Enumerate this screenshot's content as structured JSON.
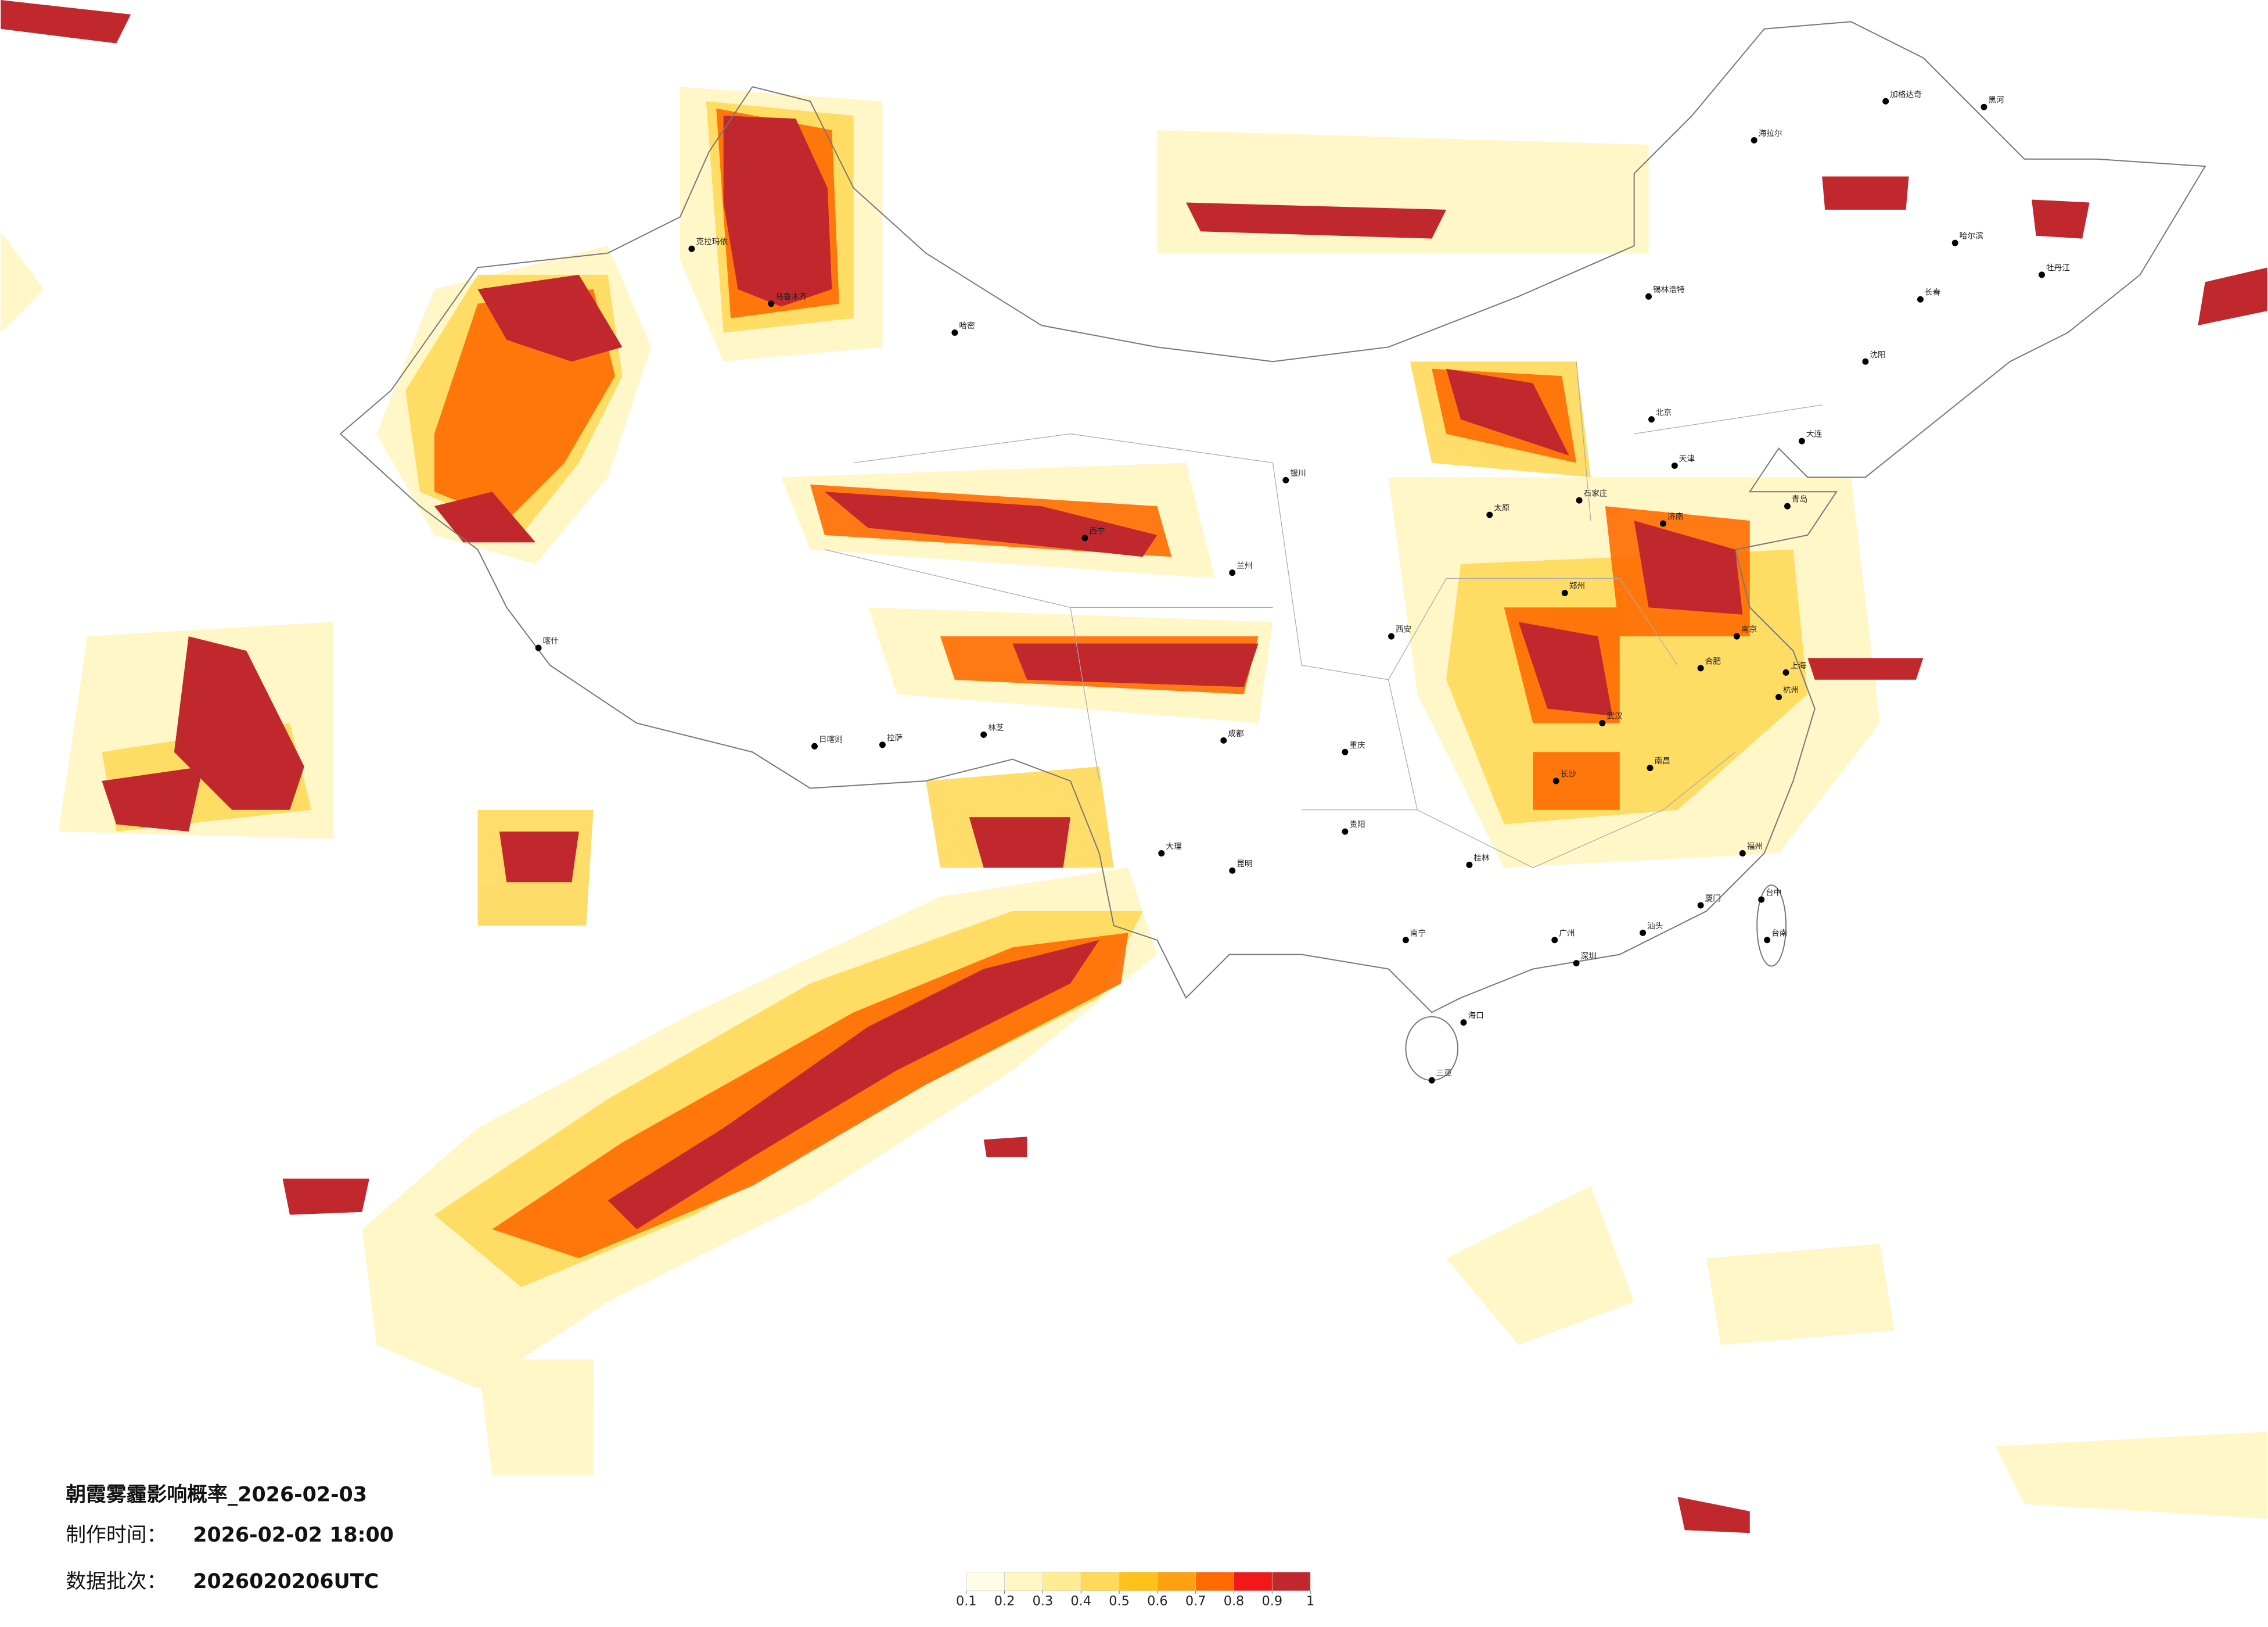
{
  "header": {
    "title": "朝霞雾霾影响概率_2026-02-03",
    "production_time": {
      "label": "制作时间：",
      "value": "2026-02-02 18:00"
    },
    "batch": {
      "label": "数据批次：",
      "value": "2026020206UTC"
    }
  },
  "legend": {
    "ticks": [
      0.1,
      0.2,
      0.3,
      0.4,
      0.5,
      0.6,
      0.7,
      0.8,
      0.9,
      1
    ],
    "colors": [
      "#fffde8",
      "#fff6c2",
      "#ffec94",
      "#ffd95a",
      "#ffc21a",
      "#ffa010",
      "#ff6a00",
      "#f01818",
      "#c0282d"
    ]
  },
  "cities": [
    "北京",
    "天津",
    "上海",
    "广州",
    "哈尔滨",
    "长春",
    "沈阳",
    "锡林浩特",
    "乌鲁木齐",
    "克拉玛依",
    "哈密",
    "喀什",
    "拉萨",
    "日喀则",
    "林芝",
    "西宁",
    "兰州",
    "银川",
    "西安",
    "太原",
    "石家庄",
    "郑州",
    "济南",
    "南京",
    "合肥",
    "杭州",
    "武汉",
    "长沙",
    "南昌",
    "福州",
    "厦门",
    "成都",
    "重庆",
    "贵阳",
    "昆明",
    "南宁",
    "海口",
    "三亚",
    "台中",
    "台南",
    "海拉尔",
    "加格达奇",
    "黑河",
    "牡丹江",
    "大连",
    "青岛",
    "深圳",
    "汕头",
    "桂林",
    "大理"
  ]
}
